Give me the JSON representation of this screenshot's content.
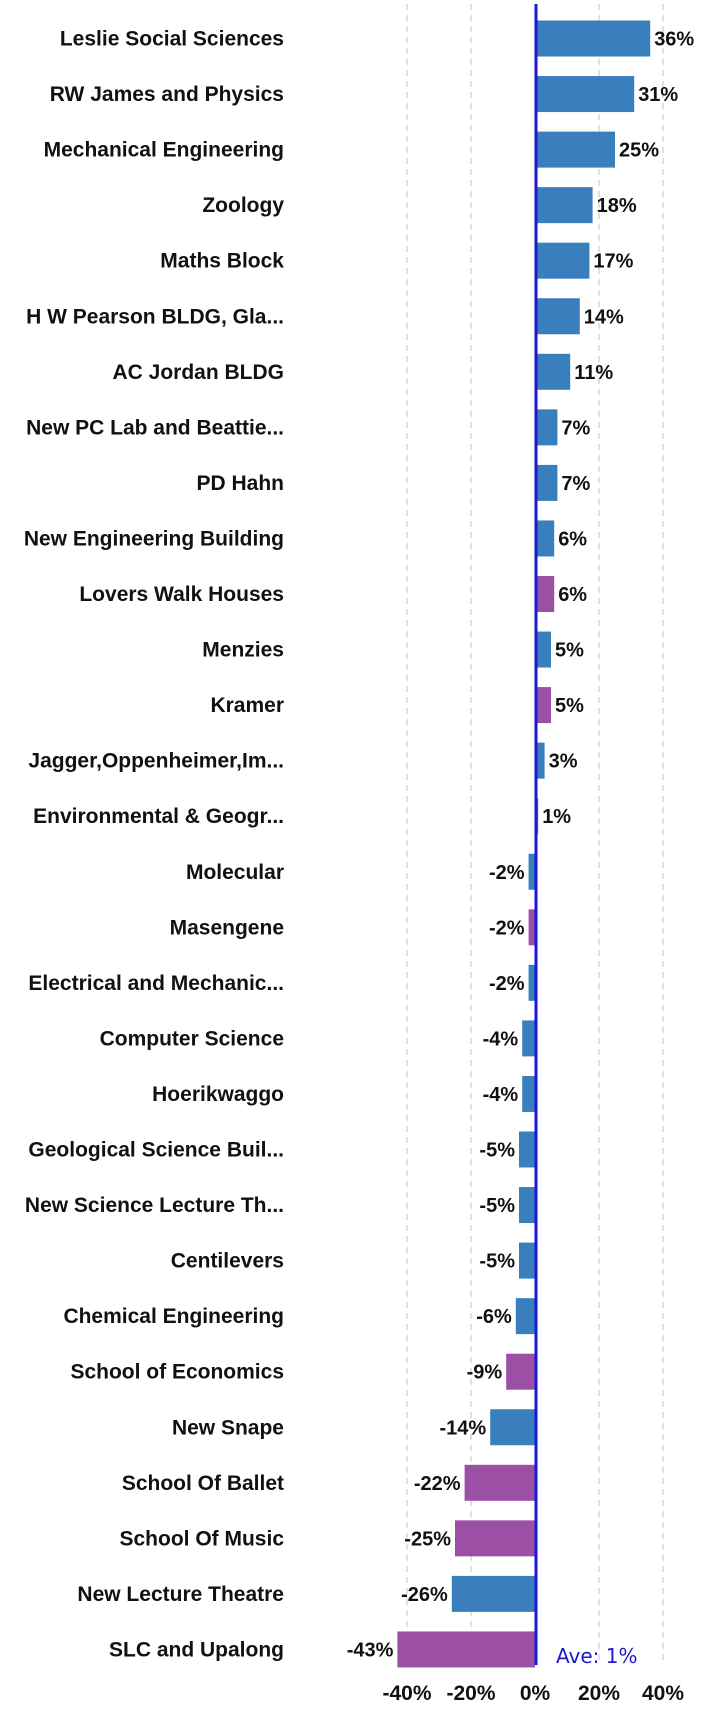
{
  "chart_data": {
    "type": "bar",
    "orientation": "horizontal",
    "categories": [
      "Leslie Social Sciences",
      "RW James and Physics",
      "Mechanical Engineering",
      "Zoology",
      "Maths Block",
      "H W Pearson BLDG, Gla...",
      "AC Jordan BLDG",
      "New PC Lab and Beattie...",
      "PD Hahn",
      "New Engineering Building",
      "Lovers Walk Houses",
      "Menzies",
      "Kramer",
      "Jagger,Oppenheimer,Im...",
      "Environmental & Geogr...",
      "Molecular",
      "Masengene",
      "Electrical and Mechanic...",
      "Computer Science",
      "Hoerikwaggo",
      "Geological Science Buil...",
      "New Science Lecture Th...",
      "Centilevers",
      "Chemical Engineering",
      "School of Economics",
      "New Snape",
      "School Of Ballet",
      "School Of Music",
      "New Lecture Theatre",
      "SLC and Upalong"
    ],
    "values": [
      36,
      31,
      25,
      18,
      17,
      14,
      11,
      7,
      7,
      6,
      6,
      5,
      5,
      3,
      1,
      -2,
      -2,
      -2,
      -4,
      -4,
      -5,
      -5,
      -5,
      -6,
      -9,
      -14,
      -22,
      -25,
      -26,
      -43
    ],
    "value_labels": [
      "36%",
      "31%",
      "25%",
      "18%",
      "17%",
      "14%",
      "11%",
      "7%",
      "7%",
      "6%",
      "6%",
      "5%",
      "5%",
      "3%",
      "1%",
      "-2%",
      "-2%",
      "-2%",
      "-4%",
      "-4%",
      "-5%",
      "-5%",
      "-5%",
      "-6%",
      "-9%",
      "-14%",
      "-22%",
      "-25%",
      "-26%",
      "-43%"
    ],
    "bar_colors": [
      "blue",
      "blue",
      "blue",
      "blue",
      "blue",
      "blue",
      "blue",
      "blue",
      "blue",
      "blue",
      "purple",
      "blue",
      "purple",
      "blue",
      "blue",
      "blue",
      "purple",
      "blue",
      "blue",
      "blue",
      "blue",
      "blue",
      "blue",
      "blue",
      "purple",
      "blue",
      "purple",
      "purple",
      "blue",
      "purple"
    ],
    "colors": {
      "blue": "#3a7fbd",
      "purple": "#9b4fa5",
      "average_line": "#1a1acc",
      "grid": "#cccccc"
    },
    "x_ticks": [
      -40,
      -20,
      0,
      20,
      40
    ],
    "x_tick_labels": [
      "-40%",
      "-20%",
      "0%",
      "20%",
      "40%"
    ],
    "xlim": [
      -44,
      46
    ],
    "average": 1,
    "average_label": "Ave: 1%",
    "grid": true,
    "title": "",
    "xlabel": "",
    "ylabel": ""
  }
}
